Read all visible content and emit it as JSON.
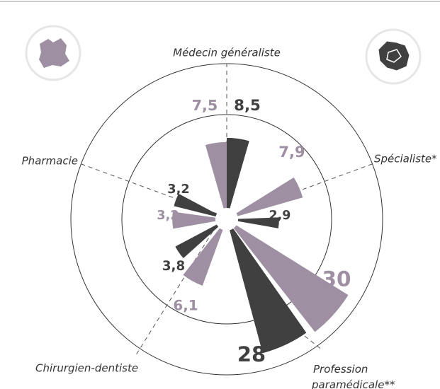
{
  "chart_data": {
    "type": "polar-bar",
    "categories": [
      "Médecin généraliste",
      "Spécialiste*",
      "Profession paramédicale**",
      "Chirurgien-dentiste",
      "Pharmacie"
    ],
    "series": [
      {
        "color": "#9e8fa3",
        "values": [
          7.5,
          7.9,
          30,
          6.1,
          3.2
        ],
        "value_labels": [
          "7,5",
          "7,9",
          "30",
          "6,1",
          "3,2"
        ]
      },
      {
        "color": "#404040",
        "values": [
          8.5,
          2.9,
          28,
          3.8,
          3.2
        ],
        "value_labels": [
          "8,5",
          "2,9",
          "28",
          "3,8",
          "3,2"
        ]
      }
    ]
  }
}
